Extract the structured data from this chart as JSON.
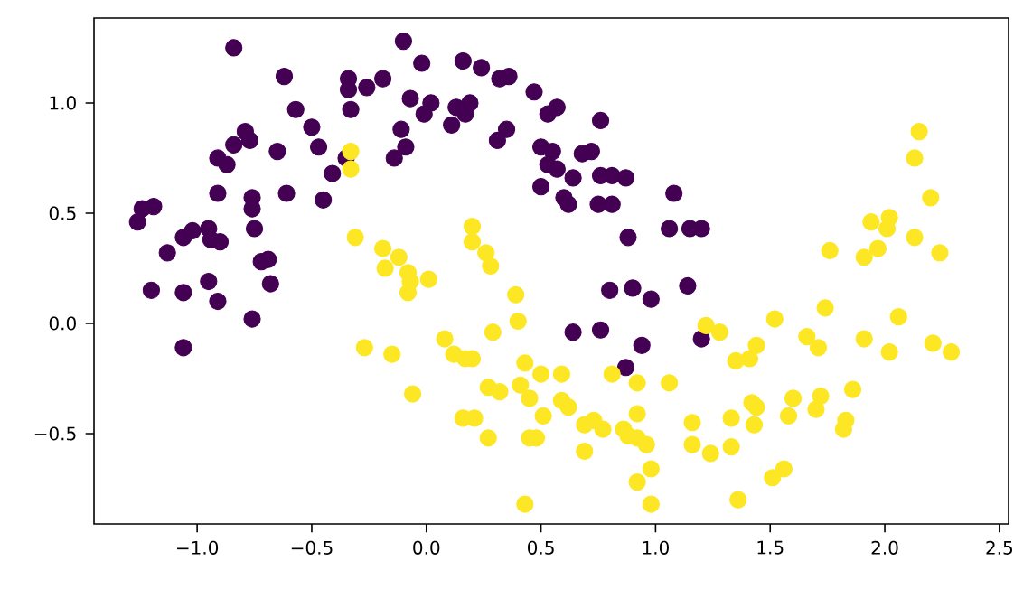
{
  "chart_data": {
    "type": "scatter",
    "xlim": [
      -1.45,
      2.54
    ],
    "ylim": [
      -0.91,
      1.385
    ],
    "xticks": [
      {
        "value": -1.0,
        "label": "−1.0"
      },
      {
        "value": -0.5,
        "label": "−0.5"
      },
      {
        "value": 0.0,
        "label": "0.0"
      },
      {
        "value": 0.5,
        "label": "0.5"
      },
      {
        "value": 1.0,
        "label": "1.0"
      },
      {
        "value": 1.5,
        "label": "1.5"
      },
      {
        "value": 2.0,
        "label": "2.0"
      },
      {
        "value": 2.5,
        "label": "2.5"
      }
    ],
    "yticks": [
      {
        "value": -0.5,
        "label": "−0.5"
      },
      {
        "value": 0.0,
        "label": "0.0"
      },
      {
        "value": 0.5,
        "label": "0.5"
      },
      {
        "value": 1.0,
        "label": "1.0"
      }
    ],
    "series": [
      {
        "color": "#440154",
        "x": [
          -0.84,
          -0.62,
          -0.34,
          -0.34,
          -0.33,
          -0.26,
          -0.19,
          -0.1,
          -0.02,
          -0.07,
          0.02,
          -0.01,
          0.13,
          0.19,
          0.17,
          0.11,
          -0.11,
          -0.09,
          -0.14,
          0.16,
          0.24,
          0.32,
          0.36,
          0.47,
          0.35,
          0.31,
          0.53,
          0.57,
          0.76,
          0.5,
          0.55,
          0.53,
          0.57,
          0.68,
          0.72,
          0.64,
          0.76,
          0.81,
          0.87,
          0.5,
          0.6,
          0.62,
          0.75,
          0.81,
          1.08,
          0.88,
          1.06,
          1.15,
          1.2,
          0.8,
          0.9,
          0.98,
          1.14,
          0.64,
          0.76,
          0.94,
          0.87,
          1.2,
          -1.26,
          -1.24,
          -1.19,
          -1.13,
          -1.2,
          -1.06,
          -1.06,
          -1.06,
          -1.02,
          -0.95,
          -0.94,
          -0.9,
          -0.95,
          -0.91,
          -0.76,
          -0.91,
          -0.91,
          -0.87,
          -0.84,
          -0.79,
          -0.77,
          -0.76,
          -0.76,
          -0.75,
          -0.72,
          -0.69,
          -0.68,
          -0.61,
          -0.65,
          -0.57,
          -0.5,
          -0.47,
          -0.45,
          -0.41,
          -0.35
        ],
        "values": [
          1.25,
          1.12,
          1.11,
          1.06,
          0.97,
          1.07,
          1.11,
          1.28,
          1.18,
          1.02,
          1.0,
          0.95,
          0.98,
          1.0,
          0.95,
          0.9,
          0.88,
          0.8,
          0.75,
          1.19,
          1.16,
          1.11,
          1.12,
          1.05,
          0.88,
          0.83,
          0.95,
          0.98,
          0.92,
          0.8,
          0.78,
          0.72,
          0.7,
          0.77,
          0.78,
          0.66,
          0.67,
          0.67,
          0.66,
          0.62,
          0.57,
          0.54,
          0.54,
          0.54,
          0.59,
          0.39,
          0.43,
          0.43,
          0.43,
          0.15,
          0.16,
          0.11,
          0.17,
          -0.04,
          -0.03,
          -0.1,
          -0.2,
          -0.07,
          0.46,
          0.52,
          0.53,
          0.32,
          0.15,
          0.14,
          -0.11,
          0.39,
          0.42,
          0.43,
          0.38,
          0.37,
          0.19,
          0.1,
          0.02,
          0.59,
          0.75,
          0.72,
          0.81,
          0.87,
          0.83,
          0.57,
          0.52,
          0.43,
          0.28,
          0.29,
          0.18,
          0.59,
          0.78,
          0.97,
          0.89,
          0.8,
          0.56,
          0.68,
          0.75
        ]
      },
      {
        "color": "#fde725",
        "x": [
          -0.33,
          -0.33,
          -0.31,
          -0.19,
          -0.12,
          -0.18,
          -0.08,
          -0.07,
          -0.08,
          0.01,
          0.2,
          0.2,
          0.26,
          0.28,
          0.39,
          0.4,
          0.29,
          0.08,
          0.12,
          0.17,
          0.2,
          -0.27,
          -0.15,
          -0.06,
          0.27,
          0.32,
          0.41,
          0.45,
          0.43,
          0.5,
          0.59,
          0.51,
          0.16,
          0.21,
          0.27,
          0.59,
          0.62,
          0.69,
          0.73,
          0.77,
          0.81,
          0.86,
          0.88,
          0.92,
          0.96,
          0.92,
          0.92,
          1.06,
          0.45,
          0.48,
          0.69,
          0.98,
          0.92,
          0.98,
          0.43,
          1.16,
          1.33,
          1.42,
          1.44,
          1.43,
          1.6,
          1.58,
          1.72,
          1.7,
          1.86,
          1.83,
          1.82,
          1.16,
          1.24,
          1.33,
          1.56,
          1.51,
          1.36,
          1.22,
          1.28,
          1.52,
          1.74,
          1.66,
          1.71,
          1.44,
          1.41,
          1.35,
          1.91,
          2.02,
          2.06,
          2.21,
          2.29,
          1.76,
          1.91,
          1.97,
          1.94,
          2.02,
          2.01,
          2.13,
          2.24,
          2.2,
          2.13,
          2.15
        ],
        "values": [
          0.78,
          0.7,
          0.39,
          0.34,
          0.3,
          0.25,
          0.23,
          0.19,
          0.14,
          0.2,
          0.44,
          0.37,
          0.32,
          0.26,
          0.13,
          0.01,
          -0.04,
          -0.07,
          -0.14,
          -0.16,
          -0.16,
          -0.11,
          -0.14,
          -0.32,
          -0.29,
          -0.31,
          -0.28,
          -0.34,
          -0.18,
          -0.23,
          -0.23,
          -0.42,
          -0.43,
          -0.43,
          -0.52,
          -0.35,
          -0.38,
          -0.46,
          -0.44,
          -0.48,
          -0.23,
          -0.48,
          -0.51,
          -0.52,
          -0.55,
          -0.41,
          -0.27,
          -0.27,
          -0.52,
          -0.52,
          -0.58,
          -0.66,
          -0.72,
          -0.82,
          -0.82,
          -0.45,
          -0.43,
          -0.36,
          -0.38,
          -0.46,
          -0.34,
          -0.42,
          -0.33,
          -0.39,
          -0.3,
          -0.44,
          -0.48,
          -0.55,
          -0.59,
          -0.56,
          -0.66,
          -0.7,
          -0.8,
          -0.01,
          -0.04,
          0.02,
          0.07,
          -0.06,
          -0.11,
          -0.1,
          -0.16,
          -0.17,
          -0.07,
          -0.13,
          0.03,
          -0.09,
          -0.13,
          0.33,
          0.3,
          0.34,
          0.46,
          0.48,
          0.43,
          0.39,
          0.32,
          0.57,
          0.75,
          0.87
        ]
      }
    ]
  }
}
